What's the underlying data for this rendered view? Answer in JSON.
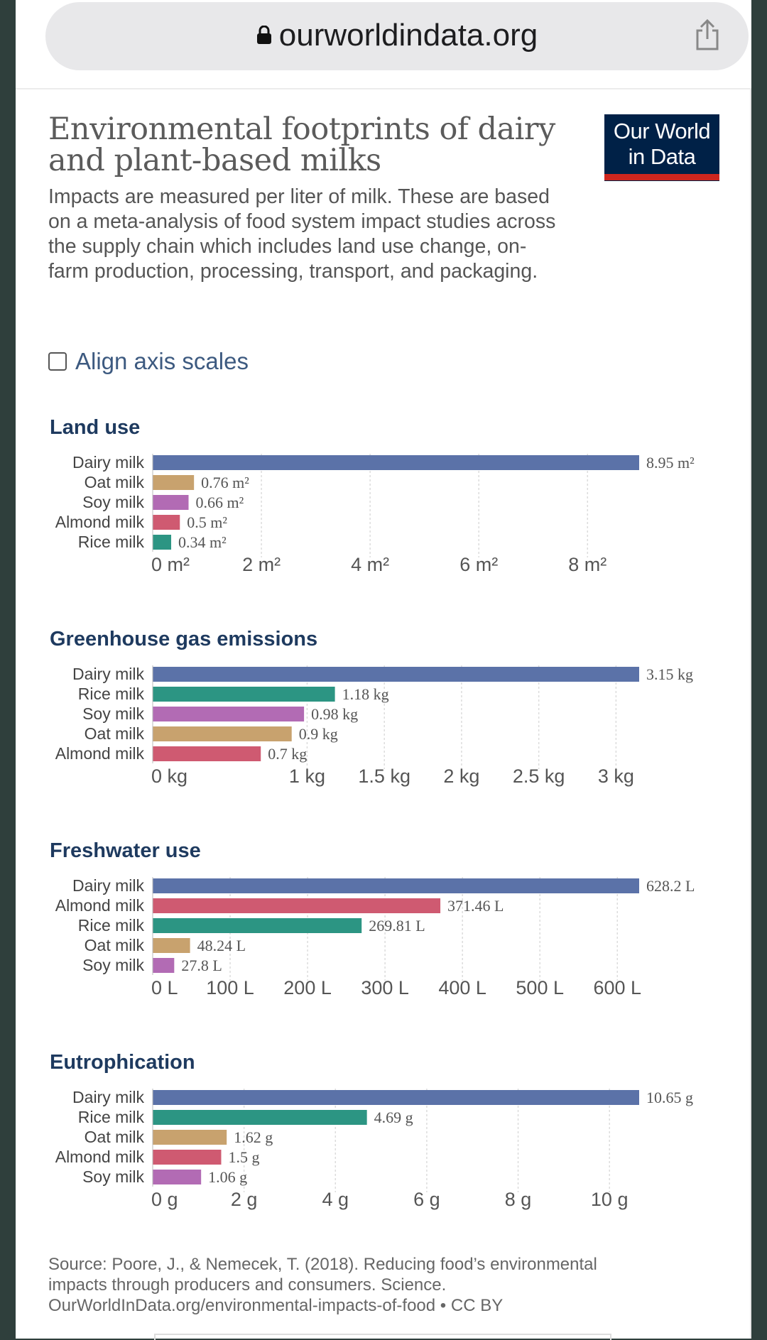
{
  "browser": {
    "url": "ourworldindata.org"
  },
  "header": {
    "title": "Environmental footprints of dairy and plant-based milks",
    "subtitle": "Impacts are measured per liter of milk. These are based on a meta-analysis of food system impact studies across the supply chain which includes land use change, on-farm production, processing, transport, and packaging.",
    "logo_line1": "Our World",
    "logo_line2": "in Data"
  },
  "controls": {
    "align_label": "Align axis scales",
    "align_checked": false
  },
  "colors": {
    "Dairy milk": "#5b72a8",
    "Oat milk": "#c8a26e",
    "Soy milk": "#b26bb4",
    "Almond milk": "#cf5a71",
    "Rice milk": "#2c9583"
  },
  "chart_data": [
    {
      "type": "bar",
      "title": "Land use",
      "categories": [
        "Dairy milk",
        "Oat milk",
        "Soy milk",
        "Almond milk",
        "Rice milk"
      ],
      "values": [
        8.95,
        0.76,
        0.66,
        0.5,
        0.34
      ],
      "value_labels": [
        "8.95 m²",
        "0.76 m²",
        "0.66 m²",
        "0.5 m²",
        "0.34 m²"
      ],
      "ticks": [
        0,
        2,
        4,
        6,
        8
      ],
      "tick_labels": [
        "0 m²",
        "2 m²",
        "4 m²",
        "6 m²",
        "8 m²"
      ],
      "xlim": [
        0,
        8.95
      ],
      "orientation": "horizontal"
    },
    {
      "type": "bar",
      "title": "Greenhouse gas emissions",
      "categories": [
        "Dairy milk",
        "Rice milk",
        "Soy milk",
        "Oat milk",
        "Almond milk"
      ],
      "values": [
        3.15,
        1.18,
        0.98,
        0.9,
        0.7
      ],
      "value_labels": [
        "3.15 kg",
        "1.18 kg",
        "0.98 kg",
        "0.9 kg",
        "0.7 kg"
      ],
      "ticks": [
        0,
        1,
        1.5,
        2,
        2.5,
        3
      ],
      "tick_labels": [
        "0 kg",
        "1 kg",
        "1.5 kg",
        "2 kg",
        "2.5 kg",
        "3 kg"
      ],
      "xlim": [
        0,
        3.15
      ],
      "orientation": "horizontal"
    },
    {
      "type": "bar",
      "title": "Freshwater use",
      "categories": [
        "Dairy milk",
        "Almond milk",
        "Rice milk",
        "Oat milk",
        "Soy milk"
      ],
      "values": [
        628.2,
        371.46,
        269.81,
        48.24,
        27.8
      ],
      "value_labels": [
        "628.2 L",
        "371.46 L",
        "269.81 L",
        "48.24 L",
        "27.8 L"
      ],
      "ticks": [
        0,
        100,
        200,
        300,
        400,
        500,
        600
      ],
      "tick_labels": [
        "0 L",
        "100 L",
        "200 L",
        "300 L",
        "400 L",
        "500 L",
        "600 L"
      ],
      "xlim": [
        0,
        628.2
      ],
      "orientation": "horizontal"
    },
    {
      "type": "bar",
      "title": "Eutrophication",
      "categories": [
        "Dairy milk",
        "Rice milk",
        "Oat milk",
        "Almond milk",
        "Soy milk"
      ],
      "values": [
        10.65,
        4.69,
        1.62,
        1.5,
        1.06
      ],
      "value_labels": [
        "10.65 g",
        "4.69 g",
        "1.62 g",
        "1.5 g",
        "1.06 g"
      ],
      "ticks": [
        0,
        2,
        4,
        6,
        8,
        10
      ],
      "tick_labels": [
        "0 g",
        "2 g",
        "4 g",
        "6 g",
        "8 g",
        "10 g"
      ],
      "xlim": [
        0,
        10.65
      ],
      "orientation": "horizontal"
    }
  ],
  "footer": {
    "source_line1": "Source: Poore, J., & Nemecek, T. (2018). Reducing food’s environmental",
    "source_line2": "impacts through producers and consumers. Science.",
    "source_line3": "OurWorldInData.org/environmental-impacts-of-food • CC BY"
  }
}
